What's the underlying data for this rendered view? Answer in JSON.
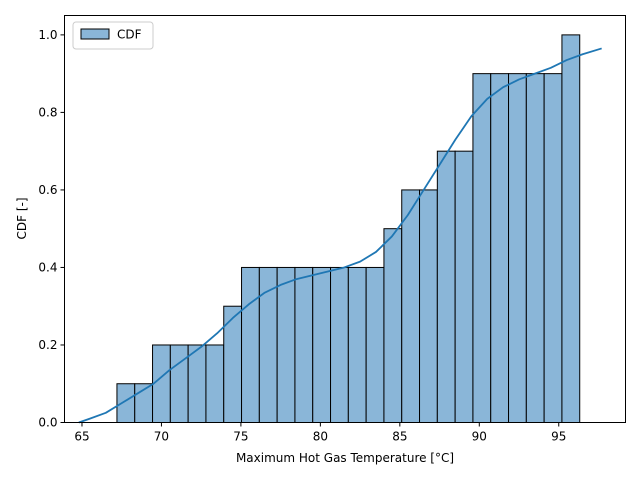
{
  "chart_data": {
    "type": "bar",
    "xlabel": "Maximum Hot Gas Temperature [°C]",
    "ylabel": "CDF [-]",
    "xlim": [
      63.9,
      99.2
    ],
    "ylim": [
      0,
      1.05
    ],
    "xticks": [
      65,
      70,
      75,
      80,
      85,
      90,
      95
    ],
    "yticks": [
      0.0,
      0.2,
      0.4,
      0.6,
      0.8,
      1.0
    ],
    "xtick_labels": [
      "65",
      "70",
      "75",
      "80",
      "85",
      "90",
      "95"
    ],
    "ytick_labels": [
      "0.0",
      "0.2",
      "0.4",
      "0.6",
      "0.8",
      "1.0"
    ],
    "legend": {
      "placement": "upper-left",
      "label": "CDF"
    },
    "grid": false,
    "bar_color": "#8ab6d8",
    "bar_edge": "#000000",
    "line_color": "#1f77b4",
    "bins": {
      "start": 67.2,
      "width": 1.12,
      "values": [
        0.1,
        0.1,
        0.2,
        0.2,
        0.2,
        0.2,
        0.3,
        0.4,
        0.4,
        0.4,
        0.4,
        0.4,
        0.4,
        0.4,
        0.4,
        0.5,
        0.6,
        0.6,
        0.7,
        0.7,
        0.9,
        0.9,
        0.9,
        0.9,
        0.9,
        1.0
      ]
    },
    "series": [
      {
        "type": "line",
        "x": [
          64.8,
          65.5,
          66.5,
          67.5,
          68.5,
          69.5,
          70.5,
          71.5,
          72.5,
          73.5,
          74.5,
          75.5,
          76.5,
          77.5,
          78.5,
          79.5,
          80.5,
          81.5,
          82.5,
          83.5,
          84.5,
          85.5,
          86.5,
          87.5,
          88.5,
          89.5,
          90.5,
          91.5,
          92.5,
          93.5,
          94.5,
          95.5,
          96.5,
          97.7
        ],
        "y": [
          0.0,
          0.01,
          0.025,
          0.05,
          0.075,
          0.1,
          0.135,
          0.165,
          0.195,
          0.23,
          0.27,
          0.305,
          0.335,
          0.355,
          0.37,
          0.38,
          0.39,
          0.4,
          0.415,
          0.44,
          0.48,
          0.535,
          0.6,
          0.665,
          0.73,
          0.79,
          0.835,
          0.865,
          0.885,
          0.9,
          0.915,
          0.935,
          0.95,
          0.965
        ]
      }
    ]
  }
}
